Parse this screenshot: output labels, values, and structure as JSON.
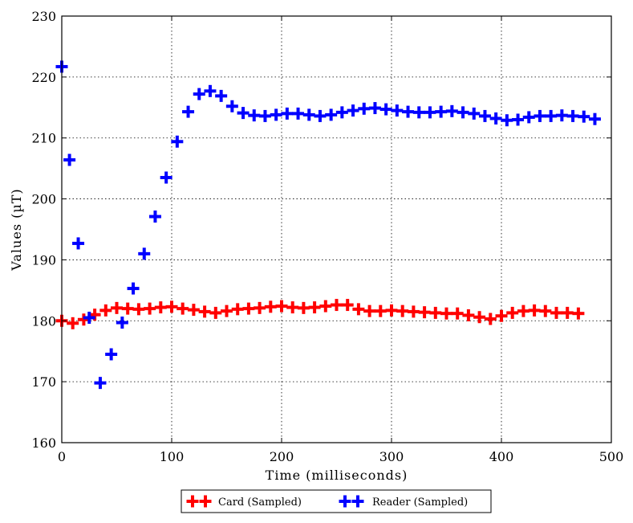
{
  "chart_data": {
    "type": "scatter",
    "title": "",
    "xlabel": "Time (milliseconds)",
    "ylabel": "Values (µT)",
    "xlim": [
      0,
      500
    ],
    "ylim": [
      160,
      230
    ],
    "x_ticks": [
      0,
      100,
      200,
      300,
      400,
      500
    ],
    "y_ticks": [
      160,
      170,
      180,
      190,
      200,
      210,
      220,
      230
    ],
    "grid": true,
    "legend_position": "bottom-center, outside plot",
    "marker": "plus",
    "series": [
      {
        "name": "Card (Sampled)",
        "color": "#ff0000",
        "x": [
          0,
          10,
          20,
          30,
          40,
          50,
          60,
          70,
          80,
          90,
          100,
          110,
          120,
          130,
          140,
          150,
          160,
          170,
          180,
          190,
          200,
          210,
          220,
          230,
          240,
          250,
          260,
          270,
          280,
          290,
          300,
          310,
          320,
          330,
          340,
          350,
          360,
          370,
          380,
          390,
          400,
          410,
          420,
          430,
          440,
          450,
          460,
          470
        ],
        "y": [
          180.0,
          179.6,
          180.2,
          181.0,
          181.7,
          182.1,
          182.0,
          181.9,
          182.0,
          182.2,
          182.3,
          182.0,
          181.8,
          181.5,
          181.3,
          181.6,
          181.9,
          182.0,
          182.1,
          182.3,
          182.4,
          182.2,
          182.1,
          182.2,
          182.4,
          182.6,
          182.6,
          181.9,
          181.6,
          181.6,
          181.7,
          181.6,
          181.5,
          181.4,
          181.3,
          181.2,
          181.2,
          180.9,
          180.6,
          180.3,
          180.8,
          181.3,
          181.6,
          181.7,
          181.6,
          181.3,
          181.3,
          181.2
        ]
      },
      {
        "name": "Reader (Sampled)",
        "color": "#0000ff",
        "x": [
          0,
          7,
          15,
          25,
          35,
          45,
          55,
          65,
          75,
          85,
          95,
          105,
          115,
          125,
          135,
          145,
          155,
          165,
          175,
          185,
          195,
          205,
          215,
          225,
          235,
          245,
          255,
          265,
          275,
          285,
          295,
          305,
          315,
          325,
          335,
          345,
          355,
          365,
          375,
          385,
          395,
          405,
          415,
          425,
          435,
          445,
          455,
          465,
          475,
          485
        ],
        "y": [
          221.7,
          206.4,
          192.7,
          180.5,
          169.8,
          174.5,
          179.7,
          185.3,
          191.0,
          197.1,
          203.5,
          209.4,
          214.3,
          217.2,
          217.7,
          216.9,
          215.2,
          214.1,
          213.7,
          213.6,
          213.8,
          214.0,
          214.0,
          213.8,
          213.6,
          213.8,
          214.2,
          214.5,
          214.8,
          214.9,
          214.7,
          214.5,
          214.3,
          214.2,
          214.2,
          214.3,
          214.4,
          214.2,
          214.0,
          213.6,
          213.2,
          212.9,
          213.0,
          213.4,
          213.6,
          213.6,
          213.7,
          213.6,
          213.5,
          213.1
        ]
      }
    ]
  }
}
